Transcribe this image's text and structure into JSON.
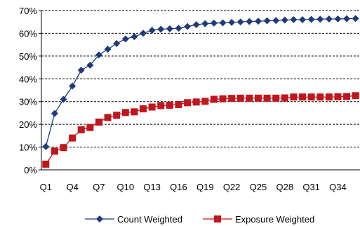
{
  "chart_data": {
    "type": "line",
    "title": "",
    "xlabel": "",
    "ylabel": "",
    "ylim": [
      0,
      70
    ],
    "y_tick_labels": [
      "0%",
      "10%",
      "20%",
      "30%",
      "40%",
      "50%",
      "60%",
      "70%"
    ],
    "y_ticks": [
      0,
      10,
      20,
      30,
      40,
      50,
      60,
      70
    ],
    "y_unit": "%",
    "grid": "horizontal dashed",
    "legend_position": "bottom",
    "x": [
      "Q1",
      "Q2",
      "Q3",
      "Q4",
      "Q5",
      "Q6",
      "Q7",
      "Q8",
      "Q9",
      "Q10",
      "Q11",
      "Q12",
      "Q13",
      "Q14",
      "Q15",
      "Q16",
      "Q17",
      "Q18",
      "Q19",
      "Q20",
      "Q21",
      "Q22",
      "Q23",
      "Q24",
      "Q25",
      "Q26",
      "Q27",
      "Q28",
      "Q29",
      "Q30",
      "Q31",
      "Q32",
      "Q33",
      "Q34",
      "Q35",
      "Q36"
    ],
    "x_tick_labels": [
      "Q1",
      "Q4",
      "Q7",
      "Q10",
      "Q13",
      "Q16",
      "Q19",
      "Q22",
      "Q25",
      "Q28",
      "Q31",
      "Q34"
    ],
    "series": [
      {
        "name": "Count Weighted",
        "color": "#1f3b7a",
        "marker": "diamond",
        "values": [
          10.2,
          24.8,
          31.0,
          36.8,
          43.8,
          46.0,
          50.5,
          53.0,
          55.5,
          57.5,
          58.5,
          60.0,
          61.3,
          61.8,
          62.0,
          62.2,
          63.0,
          63.8,
          64.2,
          64.5,
          64.6,
          64.8,
          65.0,
          65.2,
          65.3,
          65.5,
          65.6,
          65.8,
          66.0,
          66.0,
          66.1,
          66.2,
          66.3,
          66.3,
          66.4,
          66.5
        ]
      },
      {
        "name": "Exposure Weighted",
        "color": "#c0161d",
        "marker": "square",
        "values": [
          2.5,
          8.2,
          9.8,
          14.0,
          17.6,
          18.6,
          21.0,
          23.0,
          24.0,
          25.2,
          25.5,
          26.8,
          27.6,
          28.2,
          28.4,
          28.7,
          29.5,
          29.8,
          30.1,
          31.0,
          31.2,
          31.4,
          31.5,
          31.5,
          31.5,
          31.5,
          31.5,
          31.6,
          32.0,
          32.0,
          32.0,
          32.0,
          32.0,
          32.1,
          32.2,
          32.6
        ]
      }
    ]
  }
}
